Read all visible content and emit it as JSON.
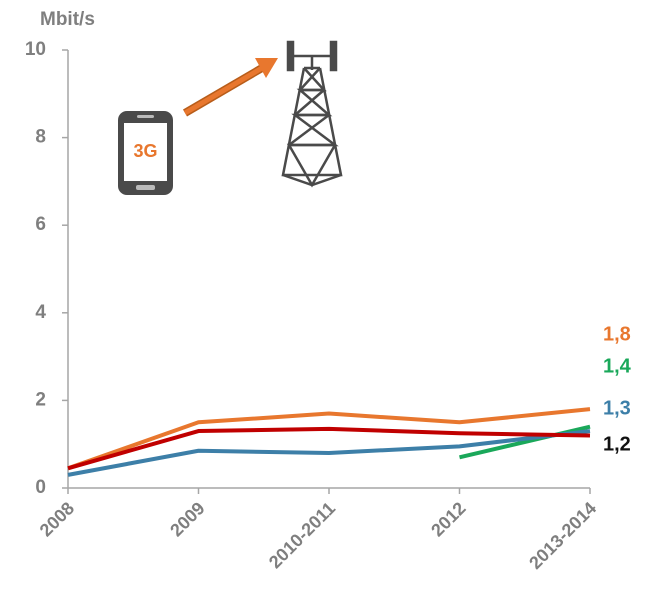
{
  "chart_data": {
    "type": "line",
    "y_label": "Mbit/s",
    "icon_text": "3G",
    "categories": [
      "2008",
      "2009",
      "2010-2011",
      "2012",
      "2013-2014"
    ],
    "series": [
      {
        "color": "#e8772e",
        "label_color": "#e8772e",
        "values": [
          0.45,
          1.5,
          1.7,
          1.5,
          1.8
        ],
        "value_labels": [
          null,
          null,
          null,
          null,
          "1,8"
        ]
      },
      {
        "color": "#1aa85a",
        "label_color": "#1aa85a",
        "values": [
          null,
          null,
          null,
          0.7,
          1.4
        ],
        "value_labels": [
          null,
          null,
          null,
          null,
          "1,4"
        ]
      },
      {
        "color": "#3d7fa8",
        "label_color": "#3d7fa8",
        "values": [
          0.3,
          0.85,
          0.8,
          0.95,
          1.3
        ],
        "value_labels": [
          null,
          null,
          null,
          null,
          "1,3"
        ]
      },
      {
        "color": "#c00000",
        "label_color": "#111111",
        "values": [
          0.45,
          1.3,
          1.35,
          1.25,
          1.2
        ],
        "value_labels": [
          null,
          null,
          null,
          null,
          "1,2"
        ]
      }
    ],
    "ylim": [
      0,
      10
    ],
    "yticks": [
      0,
      2,
      4,
      6,
      8,
      10
    ],
    "grid": false
  }
}
